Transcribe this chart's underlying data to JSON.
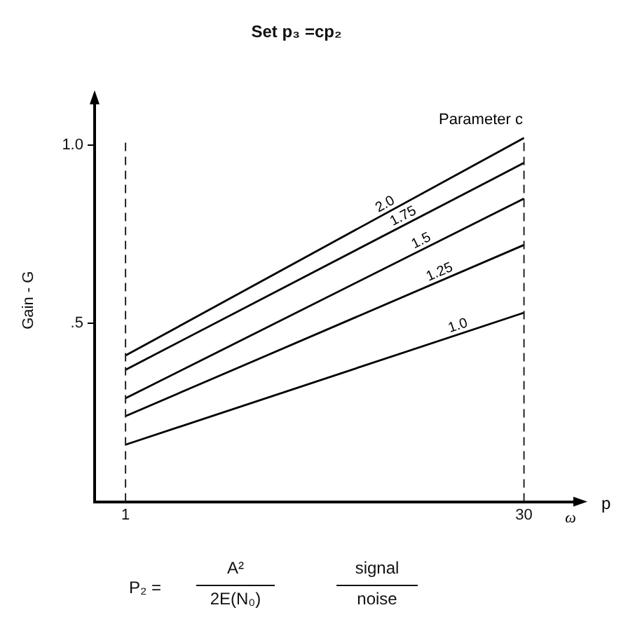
{
  "chart_data": {
    "type": "line",
    "title": "Set p₃ =cp₂",
    "xlabel": "p",
    "ylabel": "Gain - G",
    "legend_title": "Parameter c",
    "x": [
      1,
      30
    ],
    "series": [
      {
        "name": "2.0",
        "color": "#000000",
        "values": [
          0.41,
          1.02
        ]
      },
      {
        "name": "1.75",
        "color": "#000000",
        "values": [
          0.37,
          0.95
        ]
      },
      {
        "name": "1.5",
        "color": "#000000",
        "values": [
          0.29,
          0.85
        ]
      },
      {
        "name": "1.25",
        "color": "#000000",
        "values": [
          0.24,
          0.72
        ]
      },
      {
        "name": "1.0",
        "color": "#000000",
        "values": [
          0.16,
          0.53
        ]
      }
    ],
    "xlim": [
      -1.25,
      34
    ],
    "xticks": [
      1,
      30
    ],
    "ylim": [
      0,
      1.13
    ],
    "yticks": [
      {
        "value": 0.5,
        "label": ".5"
      },
      {
        "value": 1,
        "label": "1.0"
      }
    ],
    "ref_lines": [
      {
        "axis": "x",
        "value": 1,
        "line_style": "dashed"
      },
      {
        "axis": "x",
        "value": 30,
        "line_style": "dashed"
      }
    ],
    "annotations": [
      "ω",
      "P₂ =",
      "A²",
      "2E(N₀)",
      "signal",
      "noise"
    ],
    "grid": false,
    "legend": false,
    "marker": "none",
    "line_style": "solid"
  }
}
